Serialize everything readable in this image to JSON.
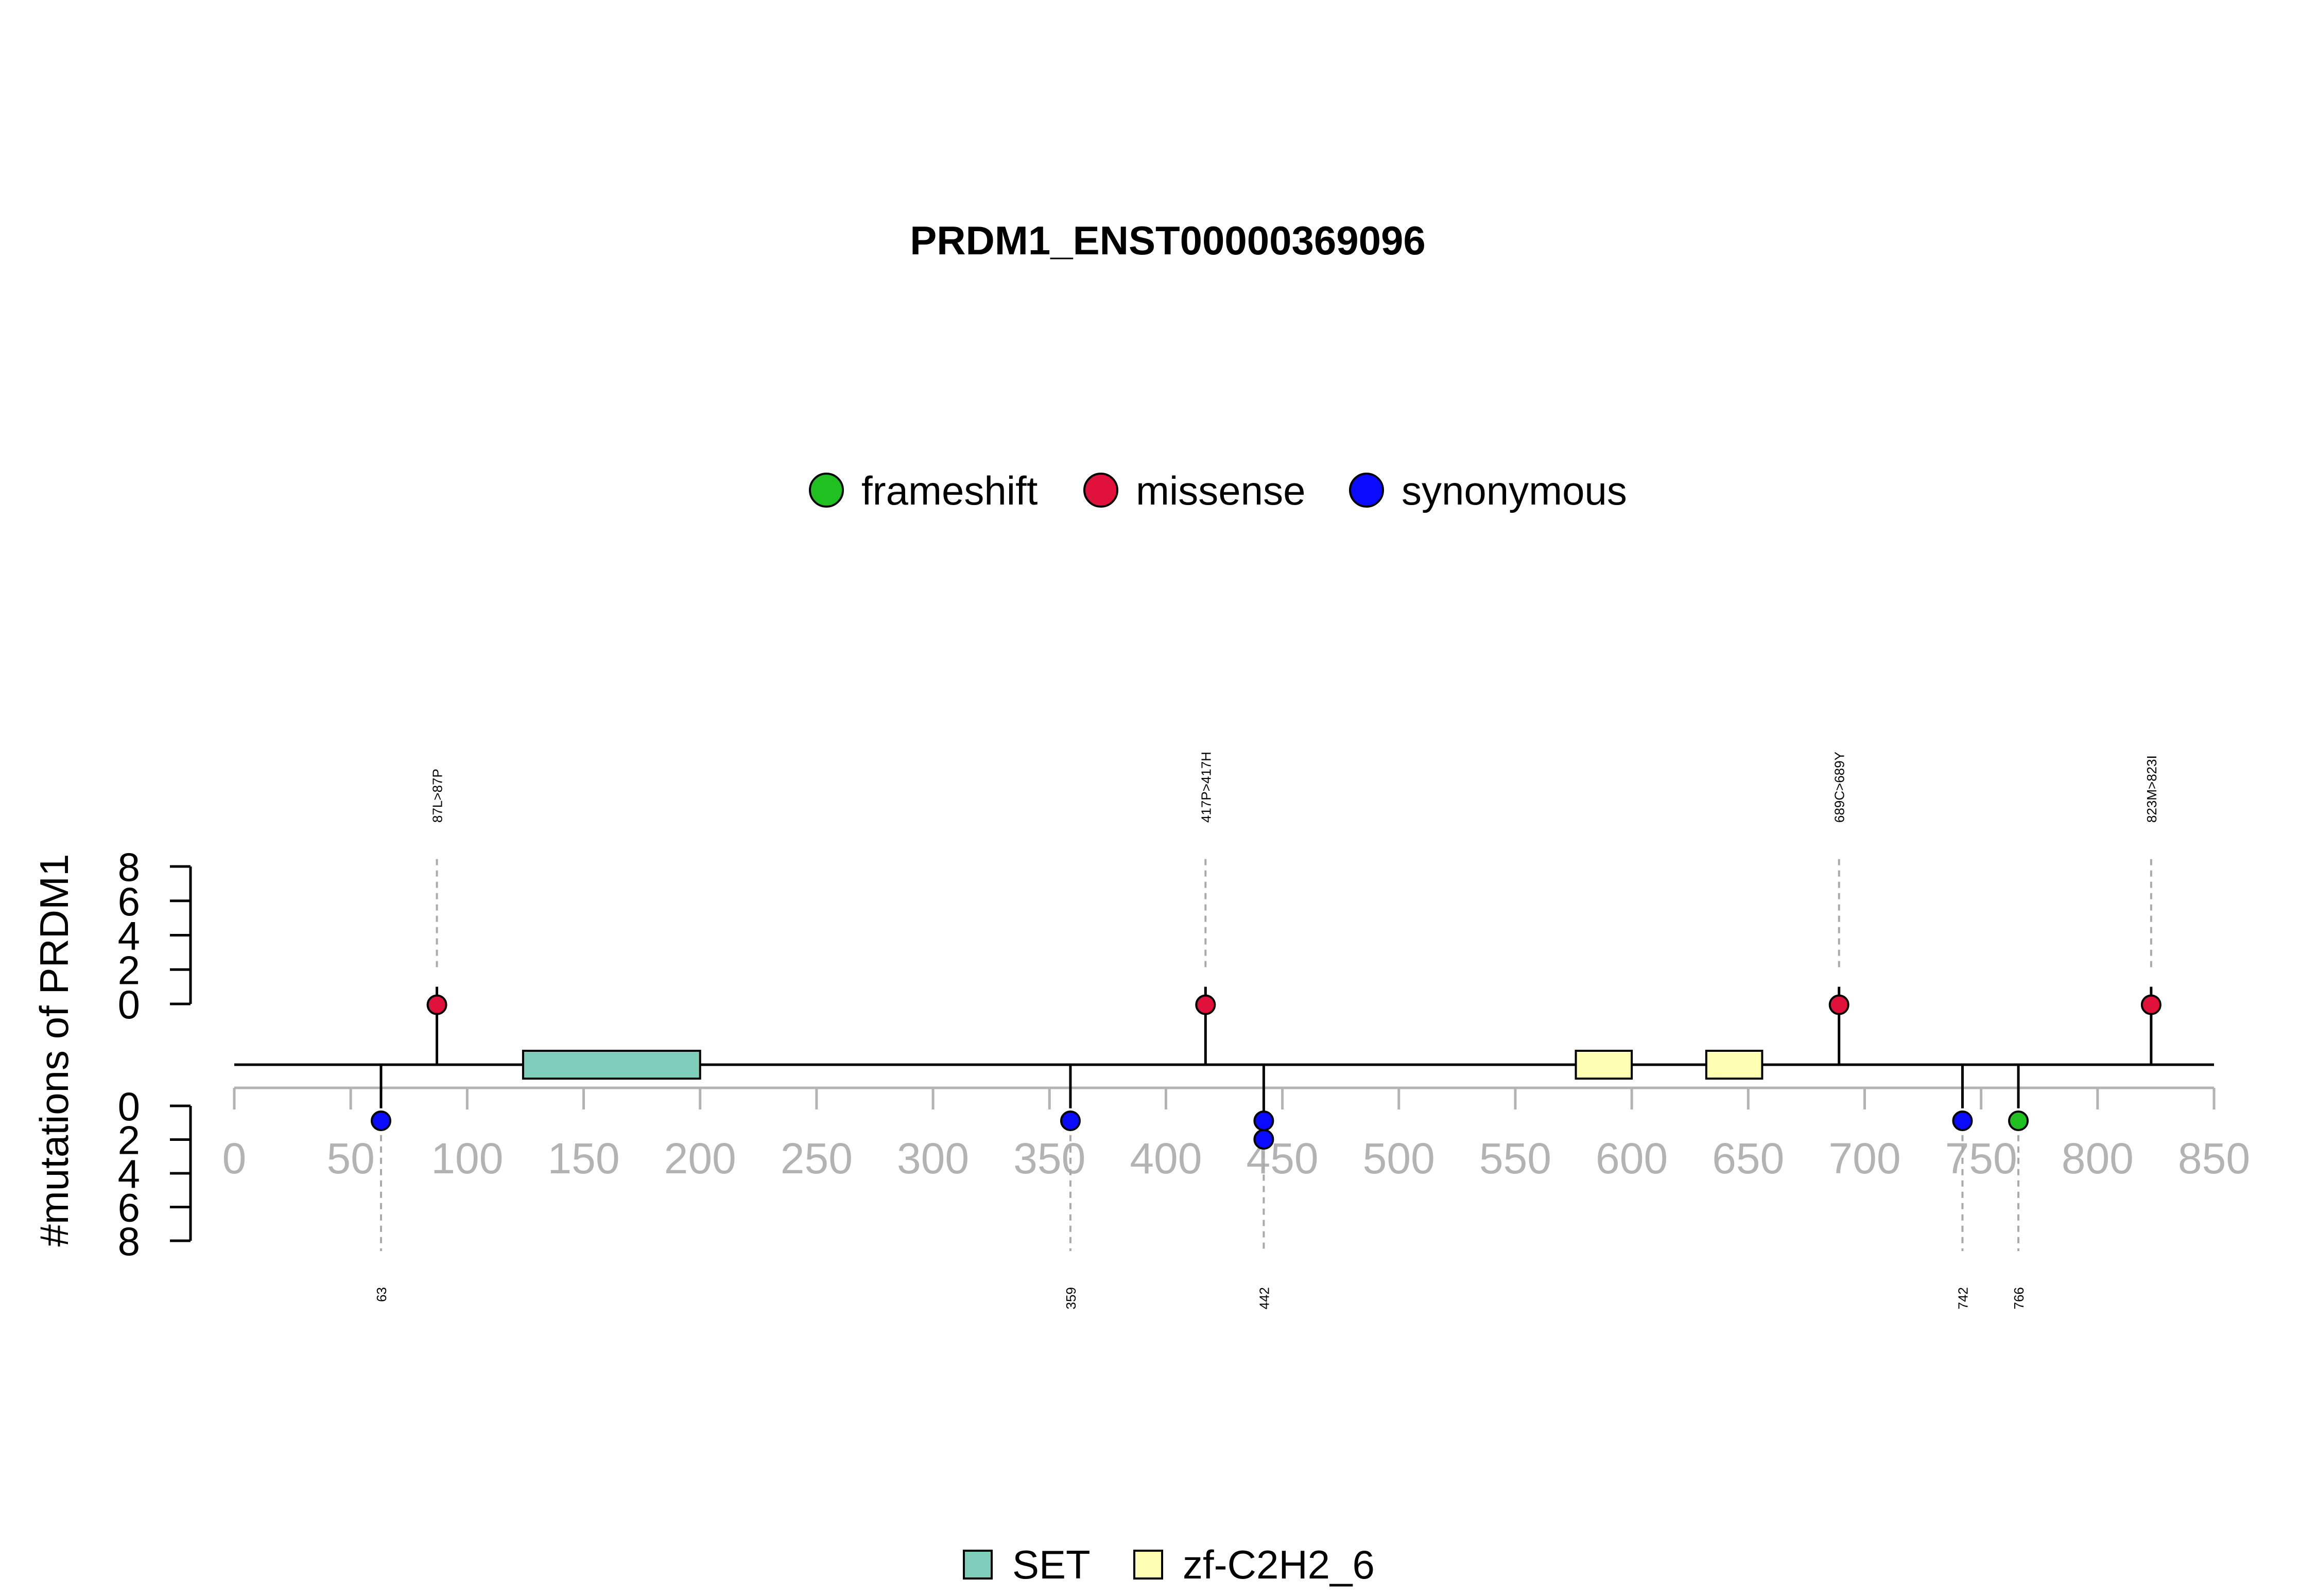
{
  "chart_data": {
    "type": "lollipop",
    "title": "PRDM1_ENST00000369096",
    "ylabel": "#mutations of PRDM1",
    "xlim": [
      0,
      850
    ],
    "x_ticks": [
      0,
      50,
      100,
      150,
      200,
      250,
      300,
      350,
      400,
      450,
      500,
      550,
      600,
      650,
      700,
      750,
      800,
      850
    ],
    "y_ticks_top": [
      "8",
      "6",
      "4",
      "2",
      "0"
    ],
    "y_ticks_bottom": [
      "0",
      "2",
      "4",
      "6",
      "8"
    ],
    "ylim": [
      0,
      8
    ],
    "mutation_legend": [
      {
        "name": "frameshift",
        "color": "#1FC01F"
      },
      {
        "name": "missense",
        "color": "#E0113A"
      },
      {
        "name": "synonymous",
        "color": "#0A0AFF"
      }
    ],
    "domain_legend": [
      {
        "name": "SET",
        "color": "#7FCDBB"
      },
      {
        "name": "zf-C2H2_6",
        "color": "#FFFFB3"
      }
    ],
    "domains": [
      {
        "name": "SET",
        "start": 124,
        "end": 200,
        "color": "#7FCDBB"
      },
      {
        "name": "zf-C2H2_6",
        "start": 576,
        "end": 600,
        "color": "#FFFFB3"
      },
      {
        "name": "zf-C2H2_6",
        "start": 632,
        "end": 656,
        "color": "#FFFFB3"
      }
    ],
    "mutations_top": [
      {
        "position": 87,
        "label": "87L>87P",
        "type": "missense",
        "count": 1
      },
      {
        "position": 417,
        "label": "417P>417H",
        "type": "missense",
        "count": 1
      },
      {
        "position": 689,
        "label": "689C>689Y",
        "type": "missense",
        "count": 1
      },
      {
        "position": 823,
        "label": "823M>823I",
        "type": "missense",
        "count": 1
      }
    ],
    "mutations_bottom": [
      {
        "position": 63,
        "label": "63",
        "type": "synonymous",
        "count": 1
      },
      {
        "position": 359,
        "label": "359",
        "type": "synonymous",
        "count": 1
      },
      {
        "position": 442,
        "label": "442",
        "type": "synonymous",
        "count": 2
      },
      {
        "position": 742,
        "label": "742",
        "type": "synonymous",
        "count": 1
      },
      {
        "position": 766,
        "label": "766",
        "type": "frameshift",
        "count": 1
      }
    ]
  }
}
